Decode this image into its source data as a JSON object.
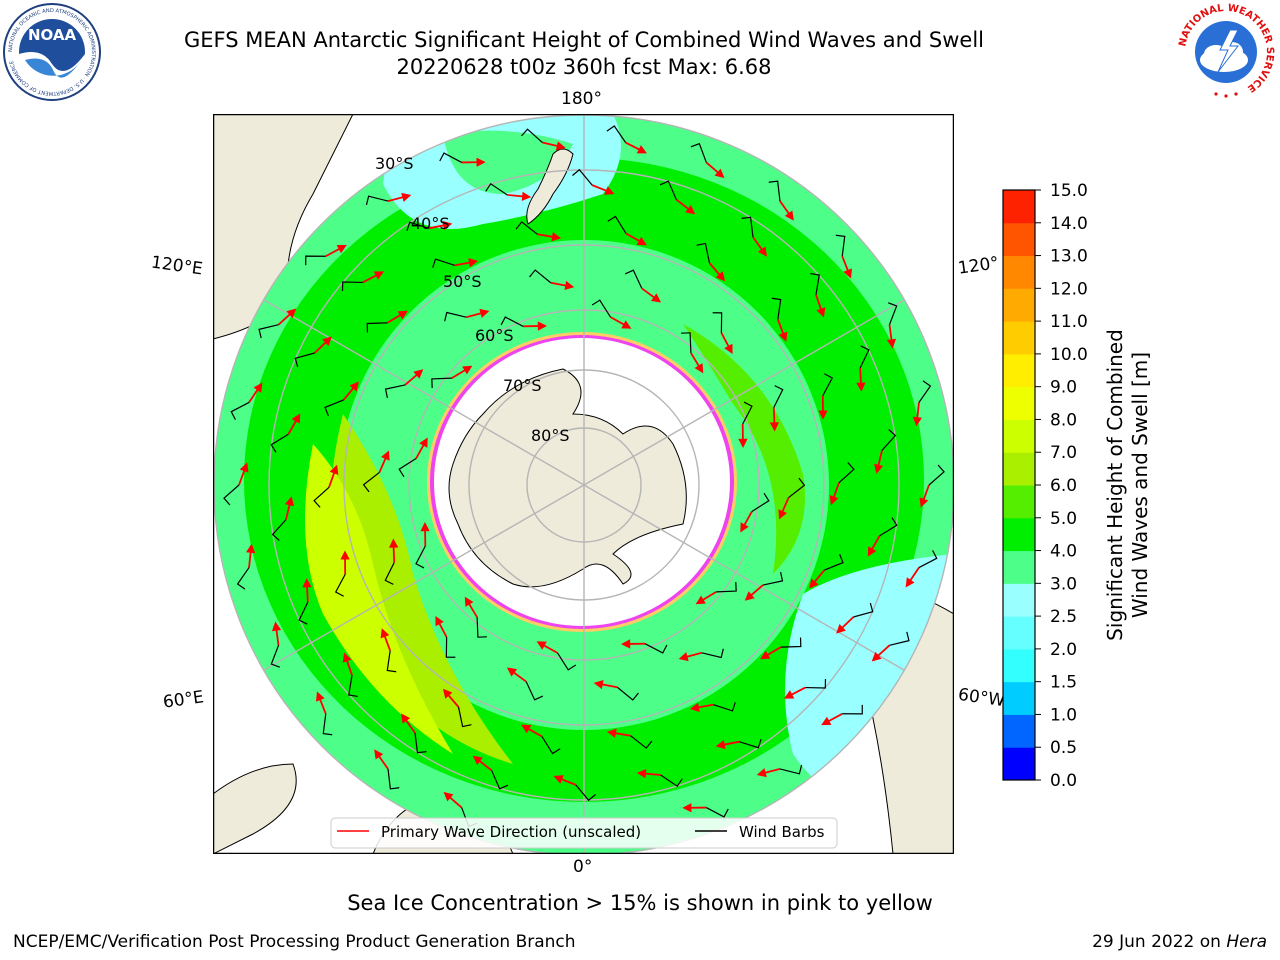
{
  "header": {
    "title_line1": "GEFS MEAN Antarctic Significant Height of Combined Wind Waves and Swell",
    "title_line2": "20220628 t00z 360h fcst   Max: 6.68"
  },
  "logos": {
    "noaa_text": "NOAA",
    "noaa_ring_text": "NATIONAL OCEANIC AND ATMOSPHERIC ADMINISTRATION · U.S. DEPARTMENT OF COMMERCE",
    "nws_ring_text": "NATIONAL WEATHER SERVICE"
  },
  "map": {
    "lon_labels": {
      "top": "180°",
      "bottom": "0°",
      "left_upper": "120°E",
      "left_lower": "60°E",
      "right_upper": "120°",
      "right_lower": "60°W"
    },
    "lat_labels": [
      "30°S",
      "40°S",
      "50°S",
      "60°S",
      "70°S",
      "80°S"
    ],
    "legend": {
      "wave_label": "Primary Wave Direction (unscaled)",
      "barb_label": "Wind Barbs"
    },
    "colors": {
      "land": "#eeebdb",
      "ice": "#ffffff",
      "ice_edge": "#ee44ee",
      "arrow": "#ff0000",
      "barb": "#000000",
      "grid": "#b5b5b5"
    }
  },
  "colorbar": {
    "label_line1": "Significant Height of Combined",
    "label_line2": "Wind Waves and Swell [m]",
    "ticks": [
      "0.0",
      "0.5",
      "1.0",
      "1.5",
      "2.0",
      "2.5",
      "3.0",
      "4.0",
      "5.0",
      "6.0",
      "7.0",
      "8.0",
      "9.0",
      "10.0",
      "11.0",
      "12.0",
      "13.0",
      "14.0",
      "15.0"
    ],
    "colors": [
      "#0000ff",
      "#0066ff",
      "#00ccff",
      "#33ffff",
      "#66ffff",
      "#99ffff",
      "#4dff88",
      "#00ee00",
      "#55ee00",
      "#aaee00",
      "#ccff00",
      "#eeff00",
      "#ffee00",
      "#ffcc00",
      "#ffaa00",
      "#ff8800",
      "#ff5500",
      "#ff2200"
    ]
  },
  "footer": {
    "note": "Sea Ice Concentration > 15% is shown in pink to yellow",
    "left": "NCEP/EMC/Verification Post Processing Product Generation Branch",
    "right_date": "29 Jun 2022 on",
    "right_host": "Hera"
  }
}
